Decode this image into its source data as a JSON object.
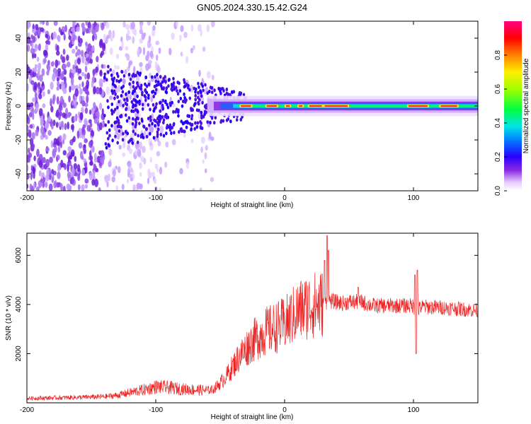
{
  "title": "GN05.2024.330.15.42.G24",
  "colors": {
    "snr_line": "#ee2222",
    "axis": "#000000"
  },
  "chart_data": [
    {
      "type": "heatmap",
      "title": "GN05.2024.330.15.42.G24",
      "xlabel": "Height of straight line (km)",
      "ylabel": "Frequency (Hz)",
      "xlim": [
        -200,
        150
      ],
      "ylim": [
        -50,
        50
      ],
      "xticks": [
        -200,
        -100,
        0,
        100
      ],
      "yticks": [
        -40,
        -20,
        0,
        20,
        40
      ],
      "grid": false,
      "colorbar": {
        "label": "Normalized spectral amplitude",
        "range": [
          0,
          1
        ],
        "ticks": [
          0.0,
          0.2,
          0.4,
          0.6,
          0.8
        ],
        "colormap": "rainbow (white-purple-blue-cyan-green-yellow-red-magenta)"
      },
      "description_values": {
        "carrier_frequency_hz": 0,
        "noise_region_km": [
          -200,
          -60
        ],
        "carrier_band_km": [
          -60,
          150
        ]
      }
    },
    {
      "type": "line",
      "xlabel": "Height of straight line (km)",
      "ylabel": "SNR (10 * v/v)",
      "xlim": [
        -200,
        150
      ],
      "ylim": [
        0,
        6900
      ],
      "xticks": [
        -200,
        -100,
        0,
        100
      ],
      "yticks": [
        2000,
        4000,
        6000
      ],
      "grid": false,
      "envelope_x": [
        -200,
        -180,
        -160,
        -140,
        -130,
        -120,
        -110,
        -100,
        -90,
        -80,
        -70,
        -60,
        -55,
        -50,
        -45,
        -40,
        -35,
        -30,
        -25,
        -20,
        -15,
        -10,
        -5,
        0,
        5,
        10,
        15,
        20,
        25,
        30,
        32,
        35,
        40,
        45,
        50,
        55,
        60,
        65,
        70,
        80,
        90,
        100,
        102,
        104,
        106,
        110,
        120,
        130,
        140,
        150
      ],
      "envelope_y": [
        180,
        200,
        220,
        250,
        300,
        420,
        520,
        650,
        620,
        560,
        530,
        500,
        560,
        800,
        1100,
        1500,
        1900,
        2200,
        2500,
        2700,
        2900,
        3000,
        3100,
        3200,
        3450,
        3700,
        3850,
        3950,
        4000,
        4050,
        4100,
        4150,
        4100,
        4050,
        4100,
        4100,
        4100,
        4000,
        3950,
        3950,
        3950,
        3950,
        3700,
        3800,
        3900,
        3900,
        3880,
        3850,
        3800,
        3750
      ],
      "spikes": [
        {
          "x": 33,
          "y": 6800
        },
        {
          "x": 34,
          "y": 6200
        },
        {
          "x": 31,
          "y": 5800
        },
        {
          "x": 101,
          "y": 5200
        },
        {
          "x": 103,
          "y": 5400
        },
        {
          "x": 102,
          "y": 2000
        },
        {
          "x": 57,
          "y": 4700
        }
      ]
    }
  ]
}
